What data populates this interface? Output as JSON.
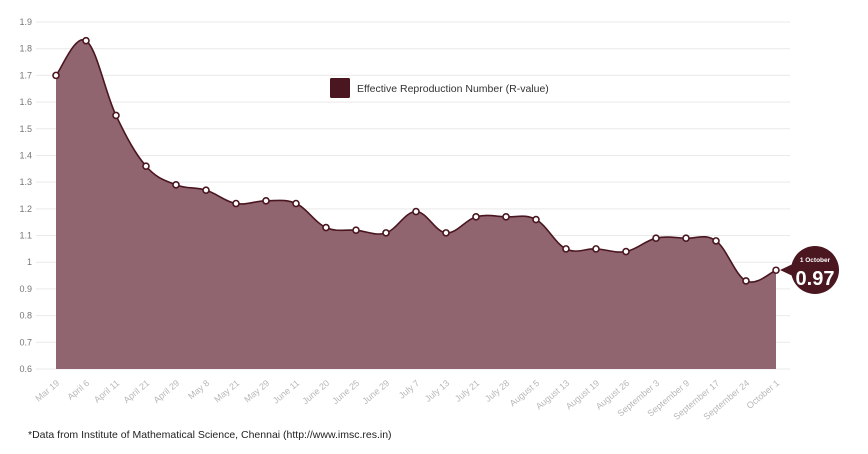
{
  "chart_data": {
    "type": "area",
    "title": "",
    "xlabel": "",
    "ylabel": "",
    "ylim": [
      0.6,
      1.9
    ],
    "y_ticks": [
      "0.6",
      "0.7",
      "0.8",
      "0.9",
      "1",
      "1.1",
      "1.2",
      "1.3",
      "1.4",
      "1.5",
      "1.6",
      "1.7",
      "1.8",
      "1.9"
    ],
    "y_tick_values": [
      0.6,
      0.7,
      0.8,
      0.9,
      1.0,
      1.1,
      1.2,
      1.3,
      1.4,
      1.5,
      1.6,
      1.7,
      1.8,
      1.9
    ],
    "grid": "horizontal",
    "legend_position": "top-center",
    "categories": [
      "Mar 19",
      "April 6",
      "April 11",
      "April 21",
      "April 29",
      "May 8",
      "May 21",
      "May 29",
      "June 11",
      "June 20",
      "June 25",
      "June 29",
      "July 7",
      "July 13",
      "July 21",
      "July 28",
      "August 5",
      "August 13",
      "August 19",
      "August 26",
      "September 3",
      "September 9",
      "September 17",
      "September 24",
      "October 1"
    ],
    "series": [
      {
        "name": "Effective Reproduction Number (R-value)",
        "color": "#8b5d68",
        "values": [
          1.7,
          1.83,
          1.55,
          1.36,
          1.29,
          1.27,
          1.22,
          1.23,
          1.22,
          1.13,
          1.12,
          1.11,
          1.19,
          1.11,
          1.17,
          1.17,
          1.16,
          1.05,
          1.05,
          1.04,
          1.09,
          1.09,
          1.08,
          0.93,
          0.97
        ]
      }
    ],
    "annotation": {
      "date": "1 October",
      "value": "0.97",
      "color": "#4a1620"
    }
  },
  "legend": {
    "label": "Effective Reproduction Number (R-value)",
    "swatch_color": "#4a1620"
  },
  "footnote": "*Data from Institute of Mathematical Science, Chennai (http://www.imsc.res.in)"
}
